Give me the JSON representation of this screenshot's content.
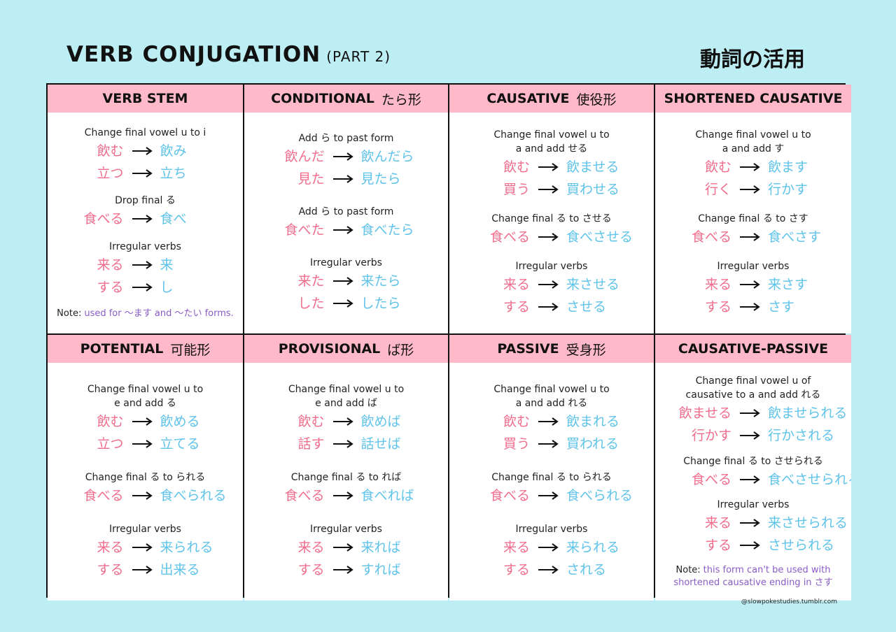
{
  "header": {
    "title": "VERB CONJUGATION",
    "subtitle": "(PART 2)",
    "title_jp": "動詞の活用"
  },
  "cells": [
    {
      "title": "VERB STEM",
      "sections": [
        {
          "rule": [
            "Change final vowel u to i"
          ],
          "pairs": [
            [
              "飲む",
              "飲み"
            ],
            [
              "立つ",
              "立ち"
            ]
          ]
        },
        {
          "rule": [
            "Drop final る"
          ],
          "pairs": [
            [
              "食べる",
              "食べ"
            ]
          ]
        },
        {
          "rule": [
            "Irregular verbs"
          ],
          "pairs": [
            [
              "来る",
              "来"
            ],
            [
              "する",
              "し"
            ]
          ]
        }
      ],
      "note": {
        "label": "Note:",
        "text": "used for ～ます and ～たい forms."
      }
    },
    {
      "title": "CONDITIONAL",
      "title_jp": "たら形",
      "sections": [
        {
          "rule": [
            "Add ら to past form"
          ],
          "pairs": [
            [
              "飲んだ",
              "飲んだら"
            ],
            [
              "見た",
              "見たら"
            ]
          ]
        },
        {
          "rule": [
            "Add ら to past form"
          ],
          "pairs": [
            [
              "食べた",
              "食べたら"
            ]
          ]
        },
        {
          "rule": [
            "Irregular verbs"
          ],
          "pairs": [
            [
              "来た",
              "来たら"
            ],
            [
              "した",
              "したら"
            ]
          ]
        }
      ]
    },
    {
      "title": "CAUSATIVE",
      "title_jp": "使役形",
      "sections": [
        {
          "rule": [
            "Change final vowel u to",
            "a and add せる"
          ],
          "pairs": [
            [
              "飲む",
              "飲ませる"
            ],
            [
              "買う",
              "買わせる"
            ]
          ]
        },
        {
          "rule": [
            "Change final る to させる"
          ],
          "pairs": [
            [
              "食べる",
              "食べさせる"
            ]
          ]
        },
        {
          "rule": [
            "Irregular verbs"
          ],
          "pairs": [
            [
              "来る",
              "来させる"
            ],
            [
              "する",
              "させる"
            ]
          ]
        }
      ]
    },
    {
      "title": "SHORTENED CAUSATIVE",
      "sections": [
        {
          "rule": [
            "Change final vowel u to",
            "a and add す"
          ],
          "pairs": [
            [
              "飲む",
              "飲ます"
            ],
            [
              "行く",
              "行かす"
            ]
          ]
        },
        {
          "rule": [
            "Change final る to さす"
          ],
          "pairs": [
            [
              "食べる",
              "食べさす"
            ]
          ]
        },
        {
          "rule": [
            "Irregular verbs"
          ],
          "pairs": [
            [
              "来る",
              "来さす"
            ],
            [
              "する",
              "さす"
            ]
          ]
        }
      ]
    },
    {
      "title": "POTENTIAL",
      "title_jp": "可能形",
      "sections": [
        {
          "rule": [
            "Change final vowel u to",
            "e and add る"
          ],
          "pairs": [
            [
              "飲む",
              "飲める"
            ],
            [
              "立つ",
              "立てる"
            ]
          ]
        },
        {
          "rule": [
            "Change final る to られる"
          ],
          "pairs": [
            [
              "食べる",
              "食べられる"
            ]
          ]
        },
        {
          "rule": [
            "Irregular verbs"
          ],
          "pairs": [
            [
              "来る",
              "来られる"
            ],
            [
              "する",
              "出来る"
            ]
          ]
        }
      ]
    },
    {
      "title": "PROVISIONAL",
      "title_jp": "ば形",
      "sections": [
        {
          "rule": [
            "Change final vowel u to",
            "e and add ば"
          ],
          "pairs": [
            [
              "飲む",
              "飲めば"
            ],
            [
              "話す",
              "話せば"
            ]
          ]
        },
        {
          "rule": [
            "Change final る to れば"
          ],
          "pairs": [
            [
              "食べる",
              "食べれば"
            ]
          ]
        },
        {
          "rule": [
            "Irregular verbs"
          ],
          "pairs": [
            [
              "来る",
              "来れば"
            ],
            [
              "する",
              "すれば"
            ]
          ]
        }
      ]
    },
    {
      "title": "PASSIVE",
      "title_jp": "受身形",
      "sections": [
        {
          "rule": [
            "Change final vowel u to",
            "a and add れる"
          ],
          "pairs": [
            [
              "飲む",
              "飲まれる"
            ],
            [
              "買う",
              "買われる"
            ]
          ]
        },
        {
          "rule": [
            "Change final る to られる"
          ],
          "pairs": [
            [
              "食べる",
              "食べられる"
            ]
          ]
        },
        {
          "rule": [
            "Irregular verbs"
          ],
          "pairs": [
            [
              "来る",
              "来られる"
            ],
            [
              "する",
              "される"
            ]
          ]
        }
      ]
    },
    {
      "title": "CAUSATIVE-PASSIVE",
      "sections": [
        {
          "rule": [
            "Change final vowel u of",
            "causative to a and add れる"
          ],
          "pairs": [
            [
              "飲ませる",
              "飲ませられる"
            ],
            [
              "行かす",
              "行かされる"
            ]
          ]
        },
        {
          "rule": [
            "Change final る to させられる"
          ],
          "pairs": [
            [
              "食べる",
              "食べさせられる"
            ]
          ]
        },
        {
          "rule": [
            "Irregular verbs"
          ],
          "pairs": [
            [
              "来る",
              "来させられる"
            ],
            [
              "する",
              "させられる"
            ]
          ]
        }
      ],
      "note": {
        "label": "Note:",
        "text": "this form can't be used with shortened causative ending in さす"
      }
    }
  ],
  "footer": {
    "credit": "@slowpokestudies.tumblr.com"
  }
}
